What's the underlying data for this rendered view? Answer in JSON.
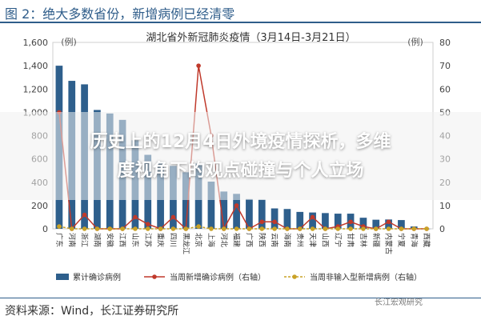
{
  "figure_title": "图 2：绝大多数省份，新增病例已经清零",
  "overlay_title": [
    "历史上的12月4日外境疫情探析，多维",
    "度视角下的观点碰撞与个人立场"
  ],
  "source": "资料来源：Wind，长江证券研究所",
  "watermark": "长江宏观研究",
  "colors": {
    "bar": "#2e5f8c",
    "line_new": "#c0392b",
    "line_asym": "#c9a227",
    "title": "#2f5d8a"
  },
  "chart_data": {
    "type": "bar",
    "title": "湖北省外新冠肺炎疫情（3月14日-3月21日）",
    "left_unit": "(例)",
    "right_unit": "(例)",
    "ylim": [
      0,
      1600
    ],
    "ylim_right": [
      0,
      80
    ],
    "yticks": [
      "0",
      "200",
      "400",
      "600",
      "800",
      "1,000",
      "1,200",
      "1,400",
      "1,600"
    ],
    "yticks_right": [
      "0",
      "10",
      "20",
      "30",
      "40",
      "50",
      "60",
      "70",
      "80"
    ],
    "categories": [
      "广东",
      "河南",
      "浙江",
      "湖南",
      "安徽",
      "江西",
      "山东",
      "江苏",
      "重庆",
      "四川",
      "黑龙江",
      "北京",
      "上海",
      "河北",
      "福建",
      "广西",
      "陕西",
      "云南",
      "海南",
      "贵州",
      "天津",
      "山西",
      "辽宁",
      "甘肃",
      "吉林",
      "新疆",
      "内蒙古",
      "宁夏",
      "青海",
      "西藏"
    ],
    "series": [
      {
        "name": "累计确诊病例",
        "axis": "left",
        "values": [
          1400,
          1270,
          1240,
          1020,
          990,
          935,
          760,
          635,
          575,
          540,
          485,
          560,
          405,
          320,
          300,
          255,
          250,
          175,
          170,
          145,
          140,
          135,
          130,
          130,
          95,
          78,
          80,
          75,
          20,
          1
        ]
      },
      {
        "name": "当周新增确诊病例（右轴）",
        "axis": "right",
        "values": [
          50,
          0,
          6,
          0,
          0,
          0,
          5,
          2,
          0,
          5,
          0,
          70,
          40,
          0,
          10,
          0,
          3,
          3,
          0,
          0,
          5,
          0,
          1,
          3,
          1,
          0,
          3,
          0,
          0,
          0
        ]
      },
      {
        "name": "当周非输入型新增病例（右轴）",
        "axis": "right",
        "values": [
          1,
          0,
          0,
          0,
          0,
          0,
          0,
          0,
          0,
          0,
          0,
          1,
          0,
          0,
          0,
          0,
          0,
          0,
          0,
          0,
          0,
          0,
          0,
          0,
          0,
          0,
          0,
          0,
          0,
          0
        ]
      }
    ],
    "legend": "bottom",
    "grid": false
  }
}
